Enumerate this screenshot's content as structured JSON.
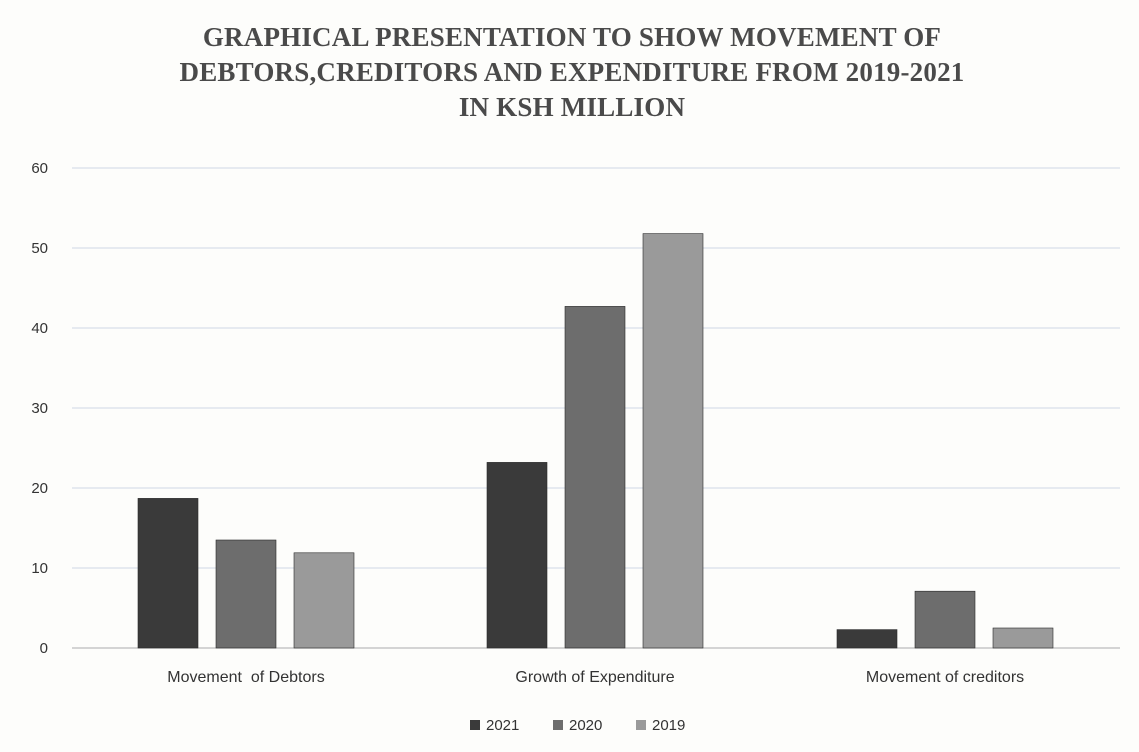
{
  "chart_data": {
    "type": "bar",
    "title": [
      "GRAPHICAL PRESENTATION TO SHOW MOVEMENT OF",
      "DEBTORS,CREDITORS AND EXPENDITURE FROM 2019-2021",
      "IN KSH MILLION"
    ],
    "categories": [
      "Movement  of Debtors",
      "Growth of Expenditure",
      "Movement of creditors"
    ],
    "series": [
      {
        "name": "2021",
        "color": "#3a3a3a",
        "values": [
          18.7,
          23.2,
          2.3
        ]
      },
      {
        "name": "2020",
        "color": "#6d6d6d",
        "values": [
          13.5,
          42.7,
          7.1
        ]
      },
      {
        "name": "2019",
        "color": "#9a9a9a",
        "values": [
          11.9,
          51.8,
          2.5
        ]
      }
    ],
    "ylim": [
      0,
      60
    ],
    "yticks": [
      0,
      10,
      20,
      30,
      40,
      50,
      60
    ],
    "grid": true,
    "legend": "bottom",
    "xlabel": "",
    "ylabel": ""
  }
}
